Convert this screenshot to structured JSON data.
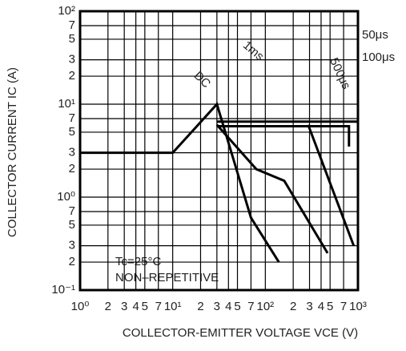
{
  "chart_data": {
    "type": "line",
    "x_label": "COLLECTOR-EMITTER VOLTAGE   VCE (V)",
    "y_label": "COLLECTOR CURRENT   IC (A)",
    "log_x": true,
    "log_y": true,
    "grid": true,
    "xlim": [
      1,
      1000
    ],
    "ylim": [
      0.1,
      100
    ],
    "xticks": [
      {
        "value": 1,
        "label": "10⁰"
      },
      2,
      3,
      4,
      5,
      7,
      {
        "value": 10,
        "label": "10¹"
      },
      {
        "value": 20,
        "label": "2"
      },
      {
        "value": 30,
        "label": "3"
      },
      {
        "value": 40,
        "label": "4"
      },
      {
        "value": 50,
        "label": "5"
      },
      {
        "value": 70,
        "label": "7"
      },
      {
        "value": 100,
        "label": "10²"
      },
      {
        "value": 200,
        "label": "2"
      },
      {
        "value": 300,
        "label": "3"
      },
      {
        "value": 400,
        "label": "4"
      },
      {
        "value": 500,
        "label": "5"
      },
      {
        "value": 700,
        "label": "7"
      },
      {
        "value": 1000,
        "label": "10³"
      }
    ],
    "yticks": [
      {
        "value": 0.1,
        "label": "10⁻¹"
      },
      {
        "value": 0.2,
        "label": "2"
      },
      {
        "value": 0.3,
        "label": "3"
      },
      {
        "value": 0.5,
        "label": "5"
      },
      {
        "value": 0.7,
        "label": "7"
      },
      {
        "value": 1,
        "label": "10⁰"
      },
      2,
      3,
      5,
      7,
      {
        "value": 10,
        "label": "10¹"
      },
      {
        "value": 20,
        "label": "2"
      },
      {
        "value": 30,
        "label": "3"
      },
      {
        "value": 50,
        "label": "5"
      },
      {
        "value": 70,
        "label": "7"
      },
      {
        "value": 100,
        "label": "10²"
      }
    ],
    "annotations": [
      "Tc=25°C",
      "NON–REPETITIVE"
    ],
    "series": [
      {
        "name": "DC",
        "color": "#000000",
        "x": [
          1,
          10,
          30,
          70,
          140
        ],
        "values": [
          3,
          3,
          10,
          0.6,
          0.2
        ]
      },
      {
        "name": "1ms",
        "color": "#000000",
        "x": [
          30,
          80,
          160,
          470
        ],
        "values": [
          6,
          2,
          1.5,
          0.25
        ]
      },
      {
        "name": "500μs",
        "color": "#000000",
        "x": [
          290,
          900
        ],
        "values": [
          6,
          0.3
        ]
      },
      {
        "name": "50μs",
        "color": "#000000",
        "x": [
          30,
          1000
        ],
        "values": [
          6.5,
          6.5
        ]
      },
      {
        "name": "100μs",
        "color": "#000000",
        "x": [
          30,
          800,
          800
        ],
        "values": [
          5.8,
          5.8,
          3.5
        ]
      }
    ]
  }
}
